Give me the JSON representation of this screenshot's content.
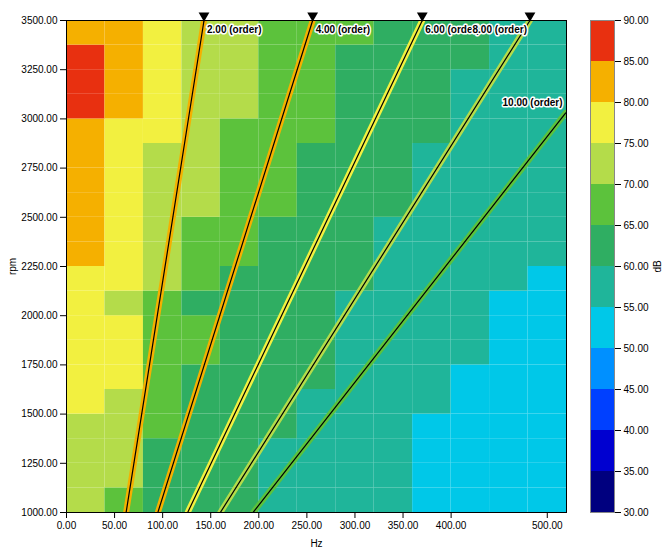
{
  "chart_data": {
    "type": "heatmap",
    "x_label": "Hz",
    "y_label": "rpm",
    "xlim": [
      0,
      520
    ],
    "xticks": [
      {
        "value": 0,
        "label": "0.00"
      },
      {
        "value": 50,
        "label": "50.00"
      },
      {
        "value": 100,
        "label": "100.00"
      },
      {
        "value": 150,
        "label": "150.00"
      },
      {
        "value": 200,
        "label": "200.00"
      },
      {
        "value": 250,
        "label": "250.00"
      },
      {
        "value": 300,
        "label": "300.00"
      },
      {
        "value": 350,
        "label": "350.00"
      },
      {
        "value": 400,
        "label": "400.00"
      },
      {
        "value": 500,
        "label": "500.00"
      }
    ],
    "ylim": [
      1000,
      3500
    ],
    "yticks": [
      {
        "value": 1000,
        "label": "1000.00"
      },
      {
        "value": 1250,
        "label": "1250.00"
      },
      {
        "value": 1500,
        "label": "1500.00"
      },
      {
        "value": 1750,
        "label": "1750.00"
      },
      {
        "value": 2000,
        "label": "2000.00"
      },
      {
        "value": 2250,
        "label": "2250.00"
      },
      {
        "value": 2500,
        "label": "2500.00"
      },
      {
        "value": 2750,
        "label": "2750.00"
      },
      {
        "value": 3000,
        "label": "3000.00"
      },
      {
        "value": 3250,
        "label": "3250.00"
      },
      {
        "value": 3500,
        "label": "3500.00"
      }
    ],
    "x_bins": [
      0,
      40,
      80,
      120,
      160,
      200,
      240,
      280,
      320,
      360,
      400,
      440,
      480,
      520
    ],
    "y_bins": [
      1000,
      1125,
      1250,
      1375,
      1500,
      1625,
      1750,
      1875,
      2000,
      2125,
      2250,
      2375,
      2500,
      2625,
      2750,
      2875,
      3000,
      3125,
      3250,
      3375,
      3500
    ],
    "cells": [
      [
        70,
        68,
        62,
        60,
        60,
        58,
        58,
        56,
        55,
        54,
        52,
        52,
        50
      ],
      [
        72,
        70,
        63,
        60,
        60,
        58,
        58,
        56,
        55,
        53,
        52,
        50,
        50
      ],
      [
        72,
        70,
        64,
        62,
        60,
        58,
        57,
        56,
        55,
        54,
        52,
        51,
        50
      ],
      [
        74,
        72,
        65,
        62,
        62,
        60,
        58,
        57,
        56,
        54,
        53,
        52,
        51
      ],
      [
        75,
        72,
        66,
        63,
        62,
        60,
        58,
        58,
        56,
        55,
        54,
        52,
        52
      ],
      [
        78,
        75,
        68,
        64,
        62,
        60,
        60,
        58,
        57,
        55,
        54,
        53,
        52
      ],
      [
        78,
        76,
        68,
        65,
        63,
        61,
        60,
        58,
        57,
        56,
        55,
        53,
        52
      ],
      [
        77,
        75,
        68,
        65,
        63,
        62,
        60,
        59,
        57,
        56,
        55,
        54,
        53
      ],
      [
        76,
        74,
        67,
        64,
        63,
        62,
        60,
        59,
        58,
        56,
        55,
        54,
        53
      ],
      [
        78,
        76,
        70,
        66,
        64,
        63,
        61,
        60,
        58,
        57,
        56,
        55,
        54
      ],
      [
        80,
        77,
        72,
        68,
        66,
        64,
        62,
        60,
        59,
        58,
        56,
        55,
        55
      ],
      [
        81,
        78,
        73,
        69,
        66,
        64,
        62,
        61,
        59,
        58,
        57,
        56,
        55
      ],
      [
        80,
        78,
        73,
        70,
        67,
        65,
        63,
        61,
        60,
        59,
        57,
        56,
        56
      ],
      [
        81,
        79,
        74,
        71,
        68,
        66,
        64,
        62,
        60,
        59,
        58,
        57,
        56
      ],
      [
        80,
        78,
        74,
        71,
        68,
        66,
        64,
        62,
        60,
        59,
        58,
        57,
        57
      ],
      [
        82,
        79,
        75,
        72,
        69,
        67,
        65,
        63,
        61,
        60,
        58,
        57,
        57
      ],
      [
        85,
        80,
        75,
        72,
        70,
        67,
        65,
        63,
        62,
        60,
        59,
        58,
        57
      ],
      [
        86,
        81,
        76,
        73,
        70,
        68,
        66,
        64,
        62,
        61,
        59,
        58,
        58
      ],
      [
        86,
        81,
        76,
        73,
        71,
        68,
        66,
        64,
        63,
        61,
        60,
        59,
        58
      ],
      [
        83,
        80,
        76,
        73,
        71,
        69,
        67,
        65,
        63,
        62,
        60,
        59,
        58
      ]
    ],
    "colorbar": {
      "label": "dB",
      "range": [
        30,
        90
      ],
      "ticks": [
        {
          "value": 30,
          "label": "30.00"
        },
        {
          "value": 35,
          "label": "35.00"
        },
        {
          "value": 40,
          "label": "40.00"
        },
        {
          "value": 45,
          "label": "45.00"
        },
        {
          "value": 50,
          "label": "50.00"
        },
        {
          "value": 55,
          "label": "55.00"
        },
        {
          "value": 60,
          "label": "60.00"
        },
        {
          "value": 65,
          "label": "65.00"
        },
        {
          "value": 70,
          "label": "70.00"
        },
        {
          "value": 75,
          "label": "75.00"
        },
        {
          "value": 80,
          "label": "80.00"
        },
        {
          "value": 85,
          "label": "85.00"
        },
        {
          "value": 90,
          "label": "90.00"
        }
      ],
      "colors": [
        "#00007f",
        "#0000d0",
        "#0040ff",
        "#0090ff",
        "#00c8e8",
        "#1fb59a",
        "#2fae62",
        "#5cc23c",
        "#b4dc4a",
        "#f2f040",
        "#f5b000",
        "#e83010"
      ]
    },
    "series": [
      {
        "name": "2.00 (order)",
        "color": "#000000",
        "level": 84,
        "x": [
          62,
          143
        ],
        "values": [
          1000,
          3500
        ]
      },
      {
        "name": "4.00 (order)",
        "color": "#000000",
        "level": 80,
        "x": [
          95,
          256
        ],
        "values": [
          1000,
          3500
        ]
      },
      {
        "name": "6.00 (order)",
        "color": "#000000",
        "level": 77,
        "x": [
          126,
          370
        ],
        "values": [
          1000,
          3500
        ]
      },
      {
        "name": "8.00 (order)",
        "color": "#000000",
        "level": 72,
        "x": [
          160,
          482
        ],
        "values": [
          1000,
          3500
        ]
      },
      {
        "name": "10.00 (order)",
        "color": "#000000",
        "level": 66,
        "x": [
          194,
          519
        ],
        "values": [
          1000,
          3030
        ]
      }
    ]
  }
}
